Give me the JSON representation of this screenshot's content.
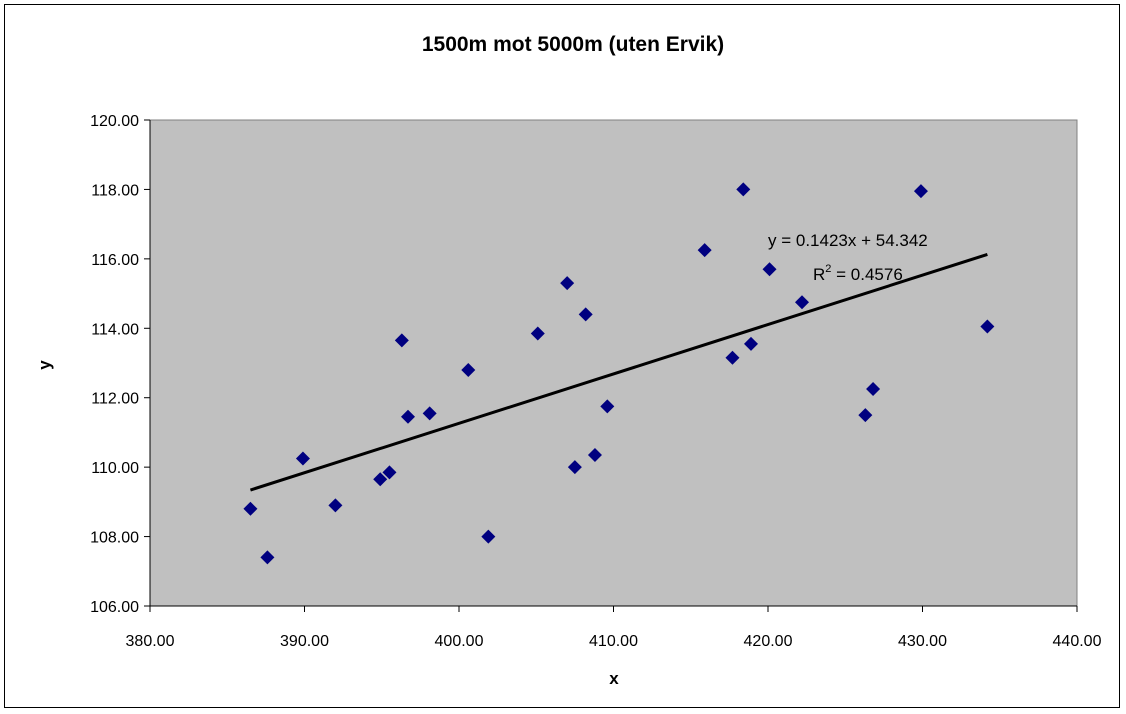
{
  "chart_data": {
    "type": "scatter",
    "title": "1500m mot 5000m (uten Ervik)",
    "xlabel": "x",
    "ylabel": "y",
    "xlim": [
      380,
      440
    ],
    "ylim": [
      106,
      120
    ],
    "x_ticks": [
      "380.00",
      "390.00",
      "400.00",
      "410.00",
      "420.00",
      "430.00",
      "440.00"
    ],
    "y_ticks": [
      "106.00",
      "108.00",
      "110.00",
      "112.00",
      "114.00",
      "116.00",
      "118.00",
      "120.00"
    ],
    "grid": false,
    "legend": "none",
    "background": "#c0c0c0",
    "marker_color": "#000080",
    "trendline": {
      "slope": 0.1423,
      "intercept": 54.342,
      "x_range": [
        386.5,
        434.2
      ],
      "equation": "y = 0.1423x + 54.342",
      "r2_prefix": "R",
      "r2_sup": "2",
      "r2_value": " = 0.4576",
      "color": "#000000"
    },
    "points": [
      {
        "x": 386.5,
        "y": 108.8
      },
      {
        "x": 387.6,
        "y": 107.4
      },
      {
        "x": 389.9,
        "y": 110.25
      },
      {
        "x": 392.0,
        "y": 108.9
      },
      {
        "x": 394.9,
        "y": 109.65
      },
      {
        "x": 395.5,
        "y": 109.85
      },
      {
        "x": 396.3,
        "y": 113.65
      },
      {
        "x": 396.7,
        "y": 111.45
      },
      {
        "x": 398.1,
        "y": 111.55
      },
      {
        "x": 400.6,
        "y": 112.8
      },
      {
        "x": 401.9,
        "y": 108.0
      },
      {
        "x": 405.1,
        "y": 113.85
      },
      {
        "x": 407.0,
        "y": 115.3
      },
      {
        "x": 407.5,
        "y": 110.0
      },
      {
        "x": 408.2,
        "y": 114.4
      },
      {
        "x": 408.8,
        "y": 110.35
      },
      {
        "x": 409.6,
        "y": 111.75
      },
      {
        "x": 415.9,
        "y": 116.25
      },
      {
        "x": 417.7,
        "y": 113.15
      },
      {
        "x": 418.4,
        "y": 118.0
      },
      {
        "x": 418.9,
        "y": 113.55
      },
      {
        "x": 420.1,
        "y": 115.7
      },
      {
        "x": 422.2,
        "y": 114.75
      },
      {
        "x": 426.3,
        "y": 111.5
      },
      {
        "x": 426.8,
        "y": 112.25
      },
      {
        "x": 429.9,
        "y": 117.95
      },
      {
        "x": 434.2,
        "y": 114.05
      }
    ]
  }
}
